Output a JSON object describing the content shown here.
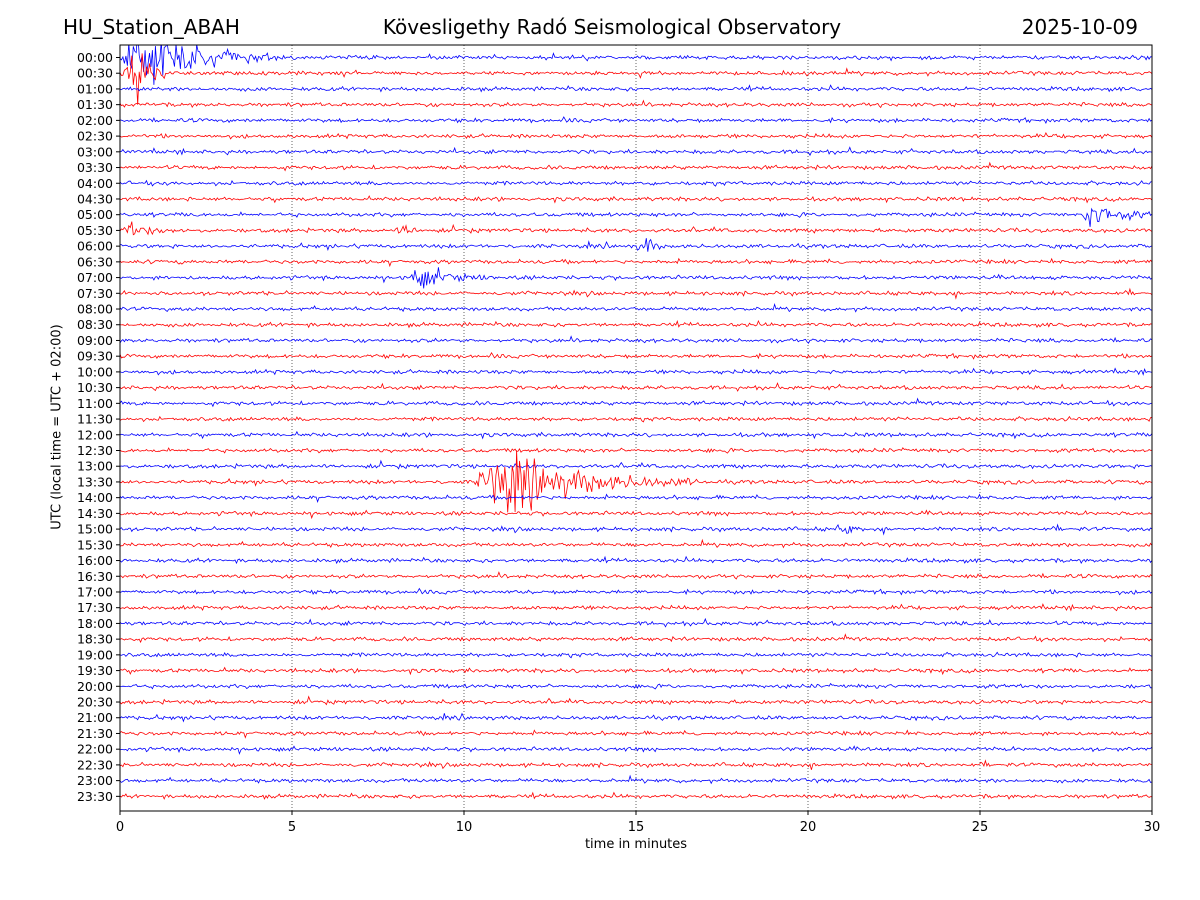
{
  "header": {
    "station": "HU_Station_ABAH",
    "observatory": "Kövesligethy Radó Seismological Observatory",
    "date": "2025-10-09"
  },
  "chart_data": {
    "type": "line",
    "title": "Kövesligethy Radó Seismological Observatory",
    "xlabel": "time in minutes",
    "ylabel": "UTC (local time = UTC + 02:00)",
    "xlim": [
      0,
      30
    ],
    "x_ticks": [
      0,
      5,
      10,
      15,
      20,
      25,
      30
    ],
    "grid": "vertical dotted lines at x ticks",
    "colors": [
      "#0000ff",
      "#ff0000"
    ],
    "rows": [
      "00:00",
      "00:30",
      "01:00",
      "01:30",
      "02:00",
      "02:30",
      "03:00",
      "03:30",
      "04:00",
      "04:30",
      "05:00",
      "05:30",
      "06:00",
      "06:30",
      "07:00",
      "07:30",
      "08:00",
      "08:30",
      "09:00",
      "09:30",
      "10:00",
      "10:30",
      "11:00",
      "11:30",
      "12:00",
      "12:30",
      "13:00",
      "13:30",
      "14:00",
      "14:30",
      "15:00",
      "15:30",
      "16:00",
      "16:30",
      "17:00",
      "17:30",
      "18:00",
      "18:30",
      "19:00",
      "19:30",
      "20:00",
      "20:30",
      "21:00",
      "21:30",
      "22:00",
      "22:30",
      "23:00",
      "23:30"
    ],
    "events": [
      {
        "row": "00:00",
        "start_min": 0.0,
        "peak_min": 0.5,
        "end_min": 5.0,
        "amplitude": 1.0
      },
      {
        "row": "00:30",
        "start_min": 0.0,
        "peak_min": 0.6,
        "end_min": 1.5,
        "amplitude": 0.9
      },
      {
        "row": "05:00",
        "start_min": 28.0,
        "peak_min": 28.2,
        "end_min": 30.0,
        "amplitude": 0.55
      },
      {
        "row": "05:30",
        "start_min": 0.0,
        "peak_min": 0.3,
        "end_min": 2.0,
        "amplitude": 0.2
      },
      {
        "row": "05:30",
        "start_min": 8.0,
        "peak_min": 8.3,
        "end_min": 9.0,
        "amplitude": 0.2
      },
      {
        "row": "06:00",
        "start_min": 15.0,
        "peak_min": 15.3,
        "end_min": 15.7,
        "amplitude": 0.3
      },
      {
        "row": "07:00",
        "start_min": 8.4,
        "peak_min": 8.6,
        "end_min": 11.0,
        "amplitude": 0.35
      },
      {
        "row": "13:30",
        "start_min": 10.3,
        "peak_min": 11.0,
        "end_min": 17.0,
        "amplitude": 1.0
      },
      {
        "row": "15:00",
        "start_min": 20.8,
        "peak_min": 21.0,
        "end_min": 21.4,
        "amplitude": 0.25
      }
    ]
  }
}
